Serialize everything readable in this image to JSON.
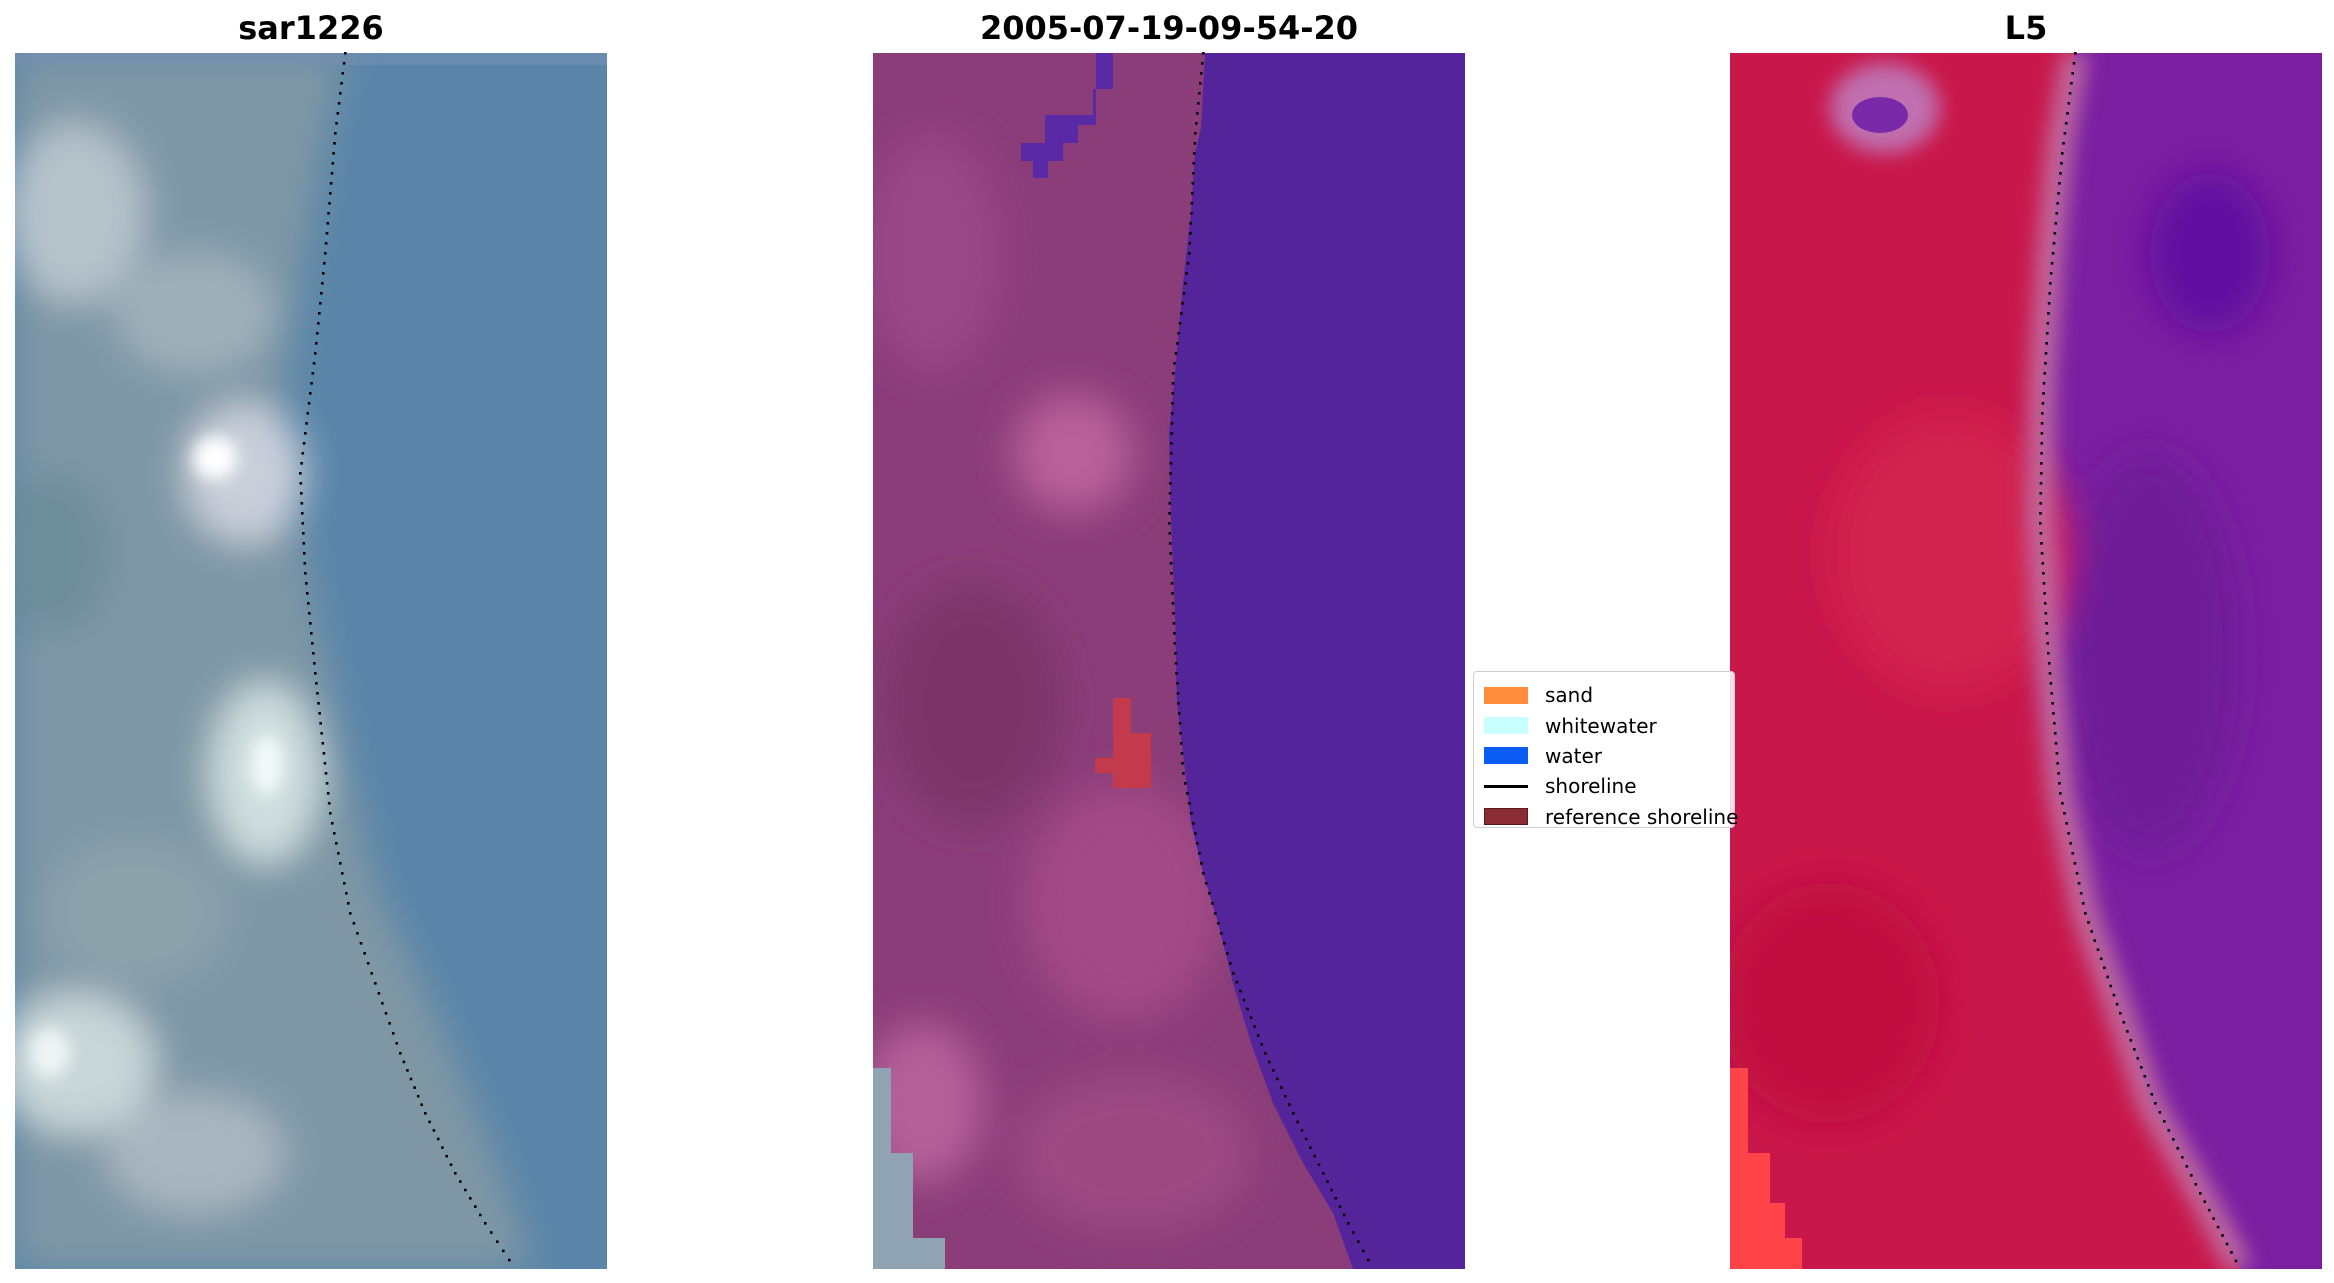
{
  "panels": [
    {
      "title": "sar1226",
      "kind": "rgb"
    },
    {
      "title": "2005-07-19-09-54-20",
      "kind": "classified"
    },
    {
      "title": "L5",
      "kind": "index"
    }
  ],
  "legend": {
    "items": [
      {
        "label": "sand",
        "color": "#ff8c3c",
        "kind": "patch"
      },
      {
        "label": "whitewater",
        "color": "#c8ffff",
        "kind": "patch"
      },
      {
        "label": "water",
        "color": "#0a5cf2",
        "kind": "patch"
      },
      {
        "label": "shoreline",
        "color": "#000000",
        "kind": "line"
      },
      {
        "label": "reference shoreline",
        "color": "#8b2c34",
        "kind": "patch"
      }
    ]
  }
}
